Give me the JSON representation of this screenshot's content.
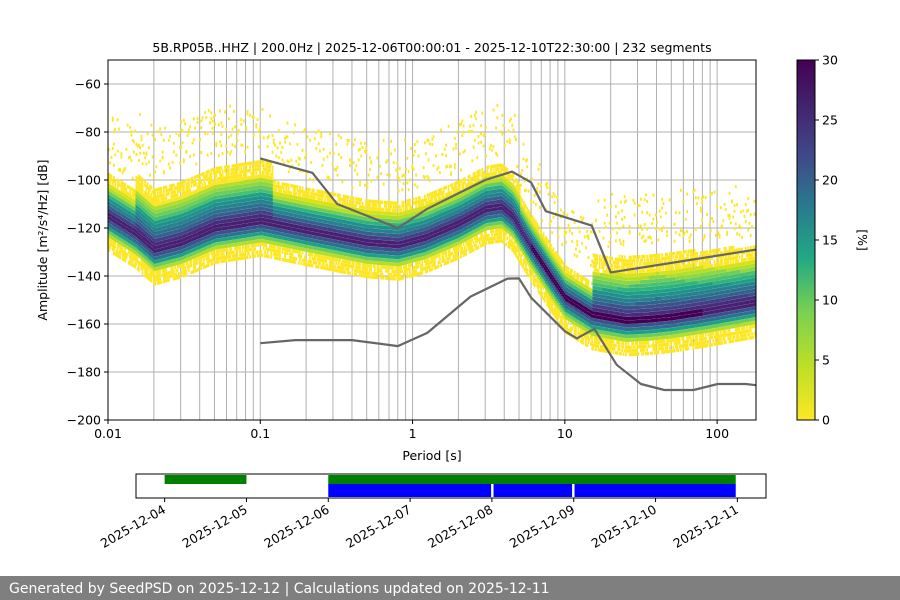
{
  "chart_data": [
    {
      "type": "heatmap",
      "title": "5B.RP05B..HHZ | 200.0Hz | 2025-12-06T00:00:01 - 2025-12-10T22:30:00 | 232 segments",
      "xlabel": "Period [s]",
      "ylabel": "Amplitude [m²/s⁴/Hz] [dB]",
      "xscale": "log",
      "xlim": [
        0.01,
        180
      ],
      "ylim": [
        -200,
        -50
      ],
      "xtick_labels": [
        "0.01",
        "0.1",
        "1",
        "10",
        "100"
      ],
      "ytick_labels": [
        "−60",
        "−80",
        "−100",
        "−120",
        "−140",
        "−160",
        "−180",
        "−200"
      ],
      "colorbar": {
        "label": "[%]",
        "range": [
          0,
          30
        ],
        "tick_labels": [
          "0",
          "5",
          "10",
          "15",
          "20",
          "25",
          "30"
        ]
      },
      "noise_model_high": {
        "name": "NHNM",
        "x": [
          0.1,
          0.22,
          0.32,
          0.8,
          1.25,
          3.0,
          4.5,
          6.0,
          7.5,
          15.0,
          20.0,
          180.0
        ],
        "y": [
          -91,
          -97,
          -110,
          -120,
          -112,
          -100,
          -96.5,
          -101,
          -113,
          -119,
          -138.5,
          -129
        ]
      },
      "noise_model_low": {
        "name": "NLNM",
        "x": [
          0.1,
          0.17,
          0.4,
          0.8,
          1.25,
          2.4,
          4.2,
          5.0,
          6.0,
          10.0,
          12.0,
          15.6,
          21.9,
          31.6,
          45.0,
          70.0,
          101.0,
          154.0,
          180.0
        ],
        "y": [
          -168,
          -166.7,
          -166.7,
          -169.2,
          -163.7,
          -148.6,
          -141.1,
          -141,
          -149,
          -163,
          -166,
          -162,
          -177,
          -185,
          -187.5,
          -187.5,
          -185,
          -185,
          -185.5
        ]
      },
      "mode_curve": {
        "x": [
          0.01,
          0.015,
          0.02,
          0.03,
          0.05,
          0.08,
          0.1,
          0.2,
          0.5,
          0.8,
          1.2,
          2.0,
          3.0,
          3.8,
          4.5,
          6.0,
          8.0,
          10.0,
          15.0,
          25.0,
          35.0,
          50.0,
          80.0,
          120.0,
          180.0
        ],
        "y": [
          -115,
          -122,
          -129,
          -126,
          -120,
          -118,
          -117,
          -121,
          -126,
          -127,
          -124,
          -118,
          -112,
          -111,
          -115,
          -128,
          -140,
          -149,
          -156,
          -158.5,
          -158,
          -157,
          -155,
          -153,
          -151
        ]
      }
    },
    {
      "type": "timeline",
      "x_tick_labels": [
        "2025-12-04",
        "2025-12-05",
        "2025-12-06",
        "2025-12-07",
        "2025-12-08",
        "2025-12-09",
        "2025-12-10",
        "2025-12-11"
      ],
      "x_range_days": [
        -0.35,
        7.35
      ],
      "colors": {
        "available": "#008000",
        "used": "#0000ff"
      },
      "available_segments": [
        [
          0.0,
          1.0
        ],
        [
          2.0,
          6.98
        ]
      ],
      "used_segments": [
        [
          2.0,
          3.99
        ],
        [
          4.02,
          4.98
        ],
        [
          5.01,
          6.98
        ]
      ]
    }
  ],
  "footer": {
    "text": "Generated by SeedPSD on 2025-12-12 | Calculations updated on 2025-12-11"
  }
}
